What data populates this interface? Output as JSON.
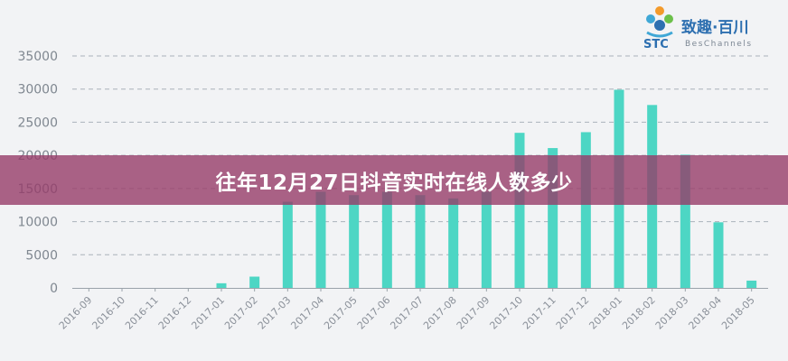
{
  "banner": {
    "title": "往年12月27日抖音实时在线人数多少"
  },
  "logo": {
    "name": "致趣·百川",
    "abbr": "STC",
    "sub": "BesChannels"
  },
  "colors": {
    "bar": "#4dd6c4",
    "grid": "#aab2ba",
    "axis": "#9aa2aa",
    "background": "#f2f3f5",
    "banner": "#963c69"
  },
  "chart_data": {
    "type": "bar",
    "title": "",
    "xlabel": "",
    "ylabel": "",
    "ylim": [
      0,
      35000
    ],
    "yticks": [
      0,
      5000,
      10000,
      15000,
      20000,
      25000,
      30000,
      35000
    ],
    "grid": true,
    "legend": "none",
    "categories": [
      "2016-09",
      "2016-10",
      "2016-11",
      "2016-12",
      "2017-01",
      "2017-02",
      "2017-03",
      "2017-04",
      "2017-05",
      "2017-06",
      "2017-07",
      "2017-08",
      "2017-09",
      "2017-10",
      "2017-11",
      "2017-12",
      "2018-01",
      "2018-02",
      "2018-03",
      "2018-04",
      "2018-05"
    ],
    "values": [
      0,
      0,
      0,
      0,
      700,
      1700,
      13000,
      14500,
      14000,
      14500,
      14000,
      13500,
      14500,
      23400,
      21100,
      23500,
      29900,
      27600,
      20100,
      9900,
      1100
    ]
  }
}
